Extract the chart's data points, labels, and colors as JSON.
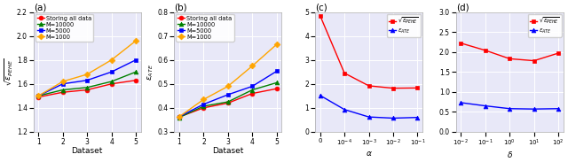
{
  "panel_a": {
    "title": "(a)",
    "xlabel": "Dataset",
    "ylim": [
      1.2,
      2.2
    ],
    "yticks": [
      1.2,
      1.4,
      1.6,
      1.8,
      2.0,
      2.2
    ],
    "xticks": [
      1,
      2,
      3,
      4,
      5
    ],
    "series": [
      {
        "label": "Storing all data",
        "x": [
          1,
          2,
          3,
          4,
          5
        ],
        "y": [
          1.49,
          1.53,
          1.55,
          1.6,
          1.63
        ],
        "color": "red",
        "marker": "o"
      },
      {
        "label": "M=10000",
        "x": [
          1,
          2,
          3,
          4,
          5
        ],
        "y": [
          1.5,
          1.55,
          1.57,
          1.62,
          1.7
        ],
        "color": "green",
        "marker": "^"
      },
      {
        "label": "M=5000",
        "x": [
          1,
          2,
          3,
          4,
          5
        ],
        "y": [
          1.5,
          1.6,
          1.63,
          1.7,
          1.8
        ],
        "color": "blue",
        "marker": "s"
      },
      {
        "label": "M=1000",
        "x": [
          1,
          2,
          3,
          4,
          5
        ],
        "y": [
          1.5,
          1.62,
          1.68,
          1.8,
          1.96
        ],
        "color": "orange",
        "marker": "D"
      }
    ]
  },
  "panel_b": {
    "title": "(b)",
    "xlabel": "Dataset",
    "ylim": [
      0.3,
      0.8
    ],
    "yticks": [
      0.3,
      0.4,
      0.5,
      0.6,
      0.7,
      0.8
    ],
    "xticks": [
      1,
      2,
      3,
      4,
      5
    ],
    "series": [
      {
        "label": "Storing all data",
        "x": [
          1,
          2,
          3,
          4,
          5
        ],
        "y": [
          0.362,
          0.4,
          0.42,
          0.46,
          0.48
        ],
        "color": "red",
        "marker": "o"
      },
      {
        "label": "M=10000",
        "x": [
          1,
          2,
          3,
          4,
          5
        ],
        "y": [
          0.36,
          0.407,
          0.425,
          0.475,
          0.505
        ],
        "color": "green",
        "marker": "^"
      },
      {
        "label": "M=5000",
        "x": [
          1,
          2,
          3,
          4,
          5
        ],
        "y": [
          0.363,
          0.415,
          0.455,
          0.49,
          0.553
        ],
        "color": "blue",
        "marker": "s"
      },
      {
        "label": "M=1000",
        "x": [
          1,
          2,
          3,
          4,
          5
        ],
        "y": [
          0.363,
          0.435,
          0.49,
          0.575,
          0.665
        ],
        "color": "orange",
        "marker": "D"
      }
    ]
  },
  "panel_c": {
    "title": "(c)",
    "xlabel": "α",
    "ylim": [
      0,
      5
    ],
    "yticks": [
      0,
      1,
      2,
      3,
      4,
      5
    ],
    "xticklabels": [
      "0",
      "10$^{-4}$",
      "10$^{-3}$",
      "10$^{-2}$",
      "10$^{-1}$"
    ],
    "series": [
      {
        "label": "sqrt_pehe",
        "x": [
          0,
          1,
          2,
          3,
          4
        ],
        "y": [
          4.85,
          2.45,
          1.92,
          1.82,
          1.83
        ],
        "color": "red",
        "marker": "s"
      },
      {
        "label": "ate",
        "x": [
          0,
          1,
          2,
          3,
          4
        ],
        "y": [
          1.52,
          0.93,
          0.62,
          0.57,
          0.6
        ],
        "color": "blue",
        "marker": "^"
      }
    ]
  },
  "panel_d": {
    "title": "(d)",
    "xlabel": "δ",
    "ylim": [
      0,
      3.0
    ],
    "yticks": [
      0.0,
      0.5,
      1.0,
      1.5,
      2.0,
      2.5,
      3.0
    ],
    "xticklabels": [
      "10$^{-2}$",
      "10$^{-1}$",
      "10$^{0}$",
      "10$^{1}$",
      "10$^{2}$"
    ],
    "series": [
      {
        "label": "sqrt_pehe",
        "x": [
          0,
          1,
          2,
          3,
          4
        ],
        "y": [
          2.22,
          2.04,
          1.83,
          1.78,
          1.97
        ],
        "color": "red",
        "marker": "s"
      },
      {
        "label": "ate",
        "x": [
          0,
          1,
          2,
          3,
          4
        ],
        "y": [
          0.73,
          0.65,
          0.58,
          0.57,
          0.58
        ],
        "color": "blue",
        "marker": "^"
      }
    ]
  },
  "bg_color": "#e8e8f8"
}
